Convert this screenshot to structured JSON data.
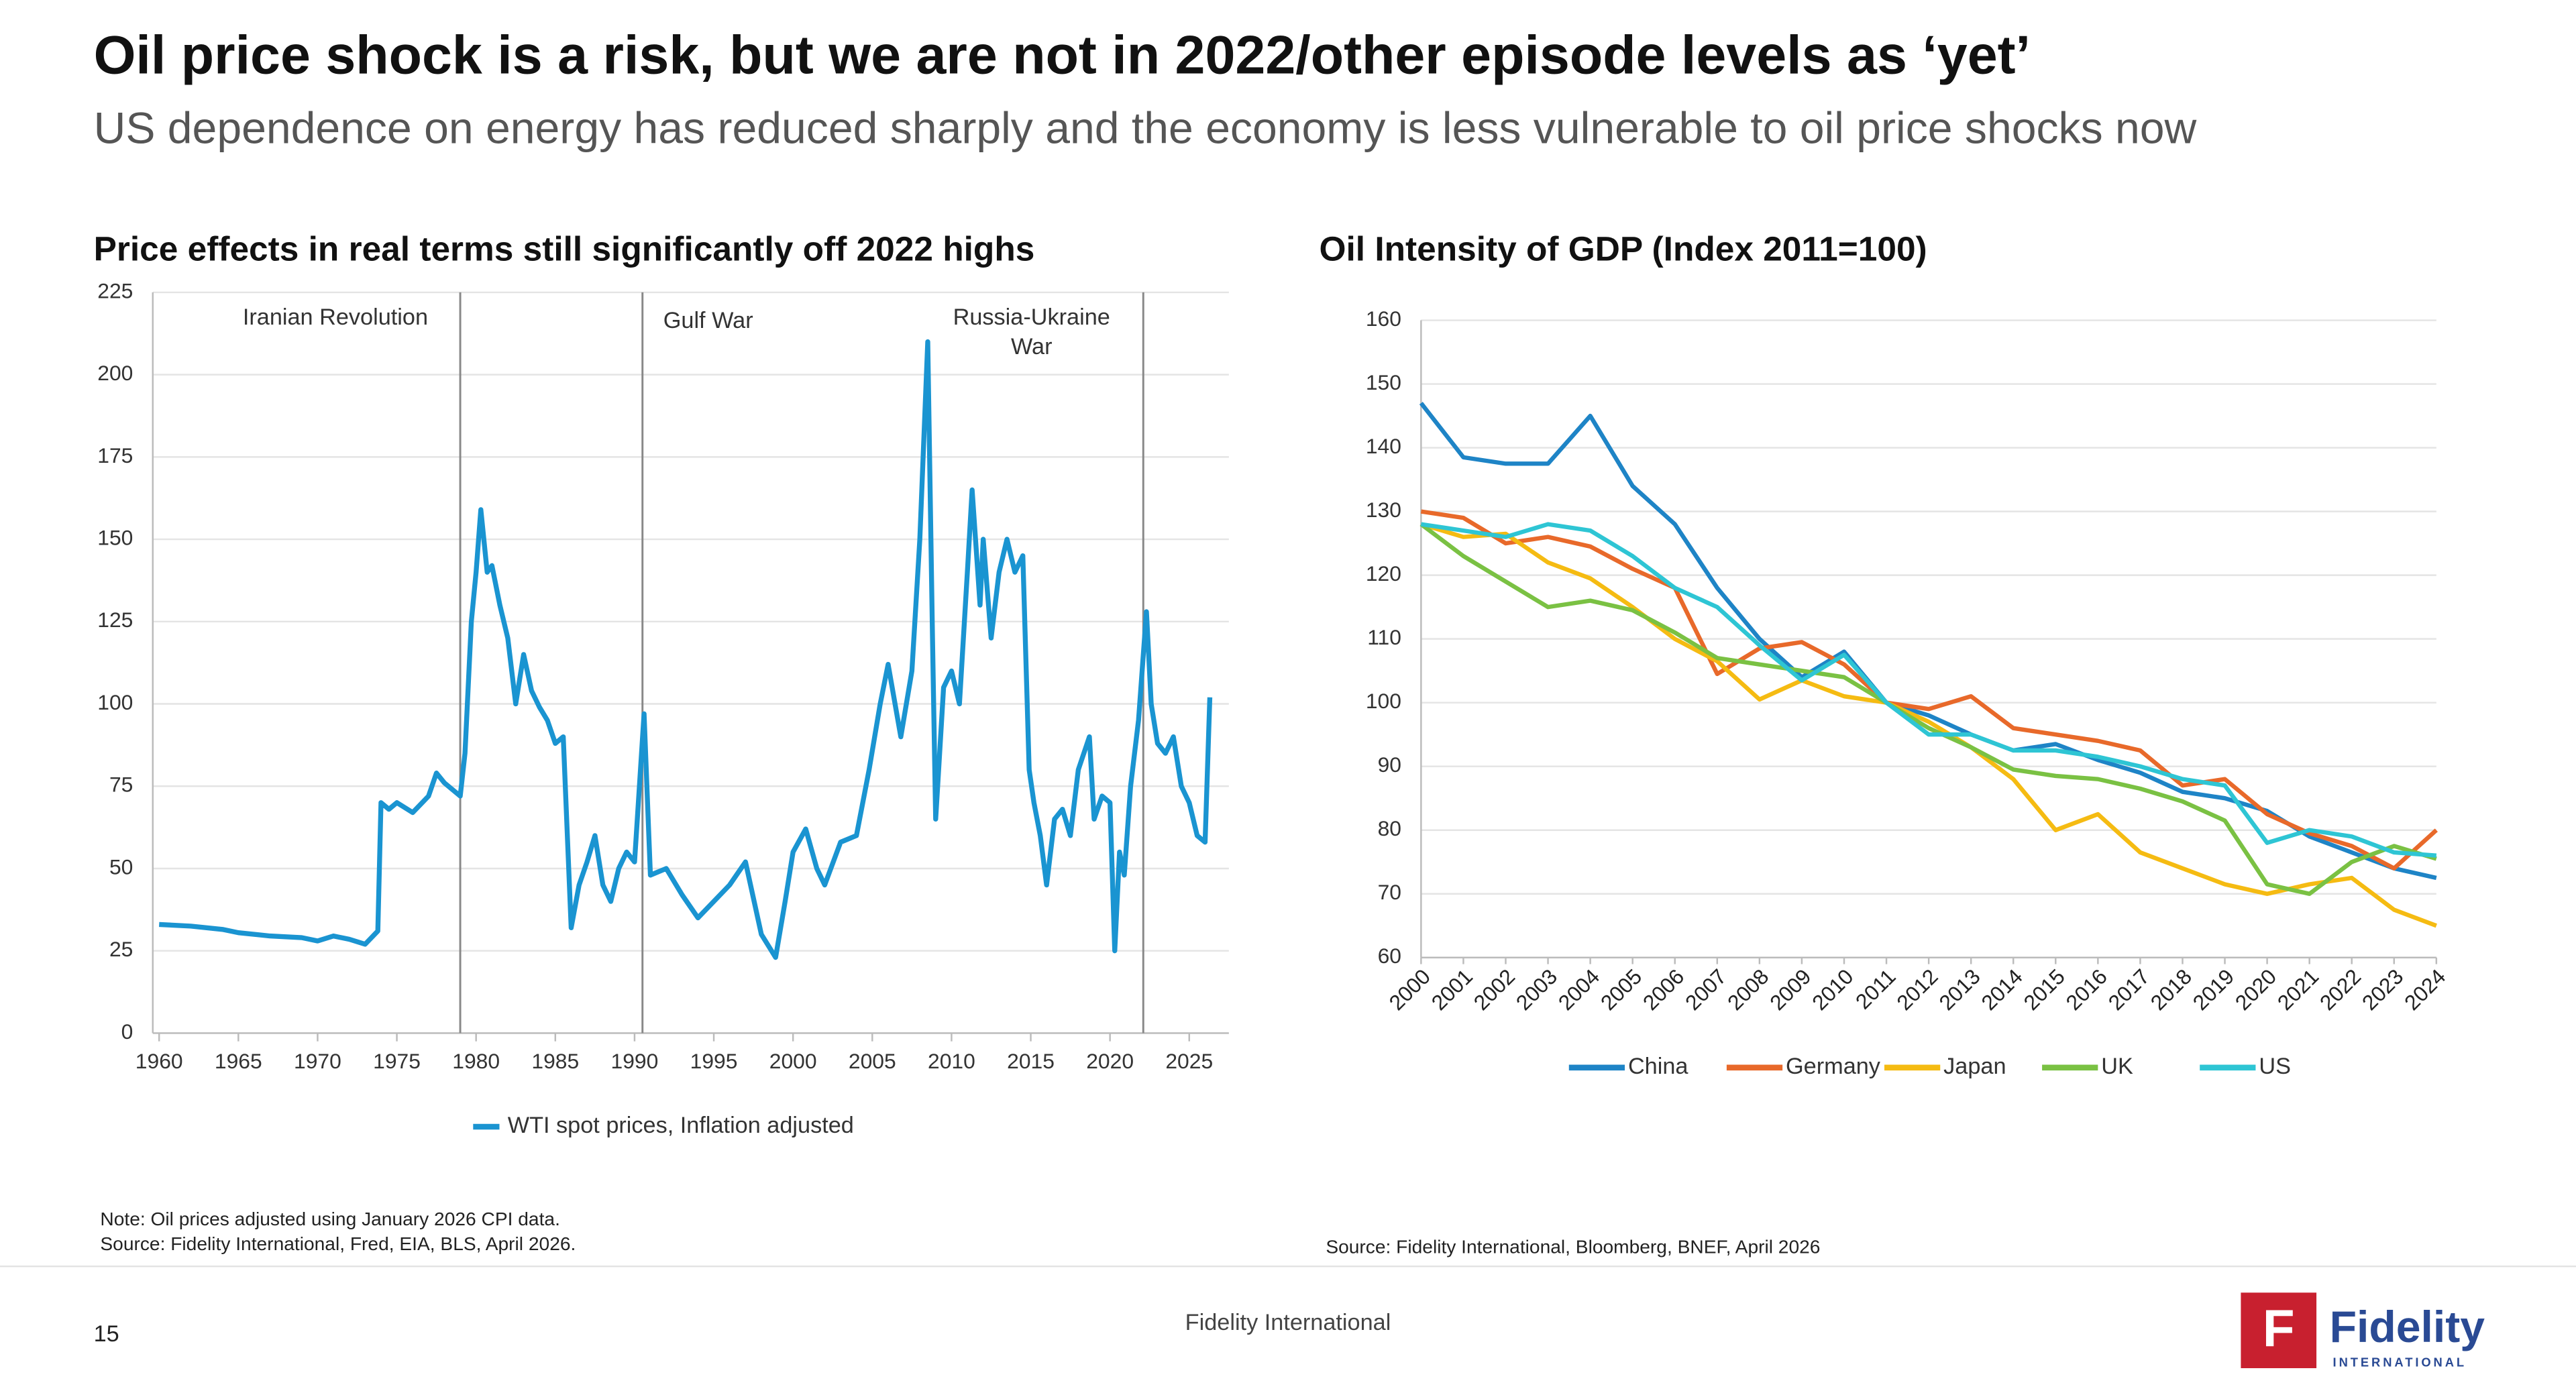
{
  "header": {
    "title": "Oil price shock is a risk, but we are not in 2022/other episode levels as ‘yet’",
    "subtitle": "US dependence on energy has reduced sharply and the economy is less vulnerable to oil price shocks now"
  },
  "footer": {
    "page": "15",
    "center": "Fidelity International",
    "logo_mark": "F",
    "logo_name": "Fidelity",
    "logo_sub": "INTERNATIONAL"
  },
  "chart_data": [
    {
      "type": "line",
      "title": "Price effects in real terms still significantly off 2022 highs",
      "notes": [
        "Note: Oil prices adjusted using January 2026 CPI data.",
        "Source: Fidelity International, Fred, EIA, BLS, April 2026."
      ],
      "x": [
        1960,
        1962,
        1964,
        1965,
        1967,
        1969,
        1970,
        1971,
        1972,
        1973,
        1973.8,
        1974,
        1974.5,
        1975,
        1976,
        1977,
        1977.5,
        1978,
        1979,
        1979.3,
        1979.7,
        1980,
        1980.3,
        1980.7,
        1981,
        1981.5,
        1982,
        1982.5,
        1983,
        1983.5,
        1984,
        1984.5,
        1985,
        1985.5,
        1986,
        1986.5,
        1987,
        1987.5,
        1988,
        1988.5,
        1989,
        1989.5,
        1990,
        1990.6,
        1990.9,
        1991,
        1992,
        1993,
        1994,
        1995,
        1996,
        1997,
        1998,
        1998.9,
        1999.5,
        2000,
        2000.8,
        2001.5,
        2002,
        2003,
        2004,
        2004.8,
        2005.5,
        2006,
        2006.8,
        2007.5,
        2008,
        2008.5,
        2008.8,
        2009,
        2009.5,
        2010,
        2010.5,
        2011,
        2011.3,
        2011.8,
        2012,
        2012.5,
        2013,
        2013.5,
        2014,
        2014.5,
        2014.9,
        2015.2,
        2015.6,
        2016,
        2016.5,
        2017,
        2017.5,
        2018,
        2018.7,
        2019,
        2019.5,
        2020,
        2020.3,
        2020.6,
        2020.9,
        2021.3,
        2021.8,
        2022.3,
        2022.6,
        2023,
        2023.5,
        2024,
        2024.5,
        2025,
        2025.5,
        2026,
        2026.3
      ],
      "series": [
        {
          "name": "WTI spot prices, Inflation adjusted",
          "color": "#1a94d1",
          "values": [
            33,
            32.5,
            31.5,
            30.5,
            29.5,
            29,
            28,
            29.5,
            28.5,
            27,
            31,
            70,
            68,
            70,
            67,
            72,
            79,
            76,
            72,
            85,
            125,
            140,
            159,
            140,
            142,
            130,
            120,
            100,
            115,
            104,
            99,
            95,
            88,
            90,
            32,
            45,
            52,
            60,
            45,
            40,
            50,
            55,
            52,
            97,
            60,
            48,
            50,
            42,
            35,
            40,
            45,
            52,
            30,
            23,
            40,
            55,
            62,
            50,
            45,
            58,
            60,
            80,
            100,
            112,
            90,
            110,
            150,
            210,
            120,
            65,
            105,
            110,
            100,
            140,
            165,
            130,
            150,
            120,
            140,
            150,
            140,
            145,
            80,
            70,
            60,
            45,
            65,
            68,
            60,
            80,
            90,
            65,
            72,
            70,
            25,
            55,
            48,
            75,
            95,
            128,
            100,
            88,
            85,
            90,
            75,
            70,
            60,
            58,
            102
          ]
        }
      ],
      "events": [
        {
          "x": 1979,
          "label": [
            "Iranian Revolution"
          ]
        },
        {
          "x": 1990.5,
          "label": [
            "Gulf War"
          ]
        },
        {
          "x": 2022.1,
          "label": [
            "Russia-Ukraine",
            "War"
          ]
        }
      ],
      "xlim": [
        1959.6,
        2027.5
      ],
      "xticks": [
        1960,
        1965,
        1970,
        1975,
        1980,
        1985,
        1990,
        1995,
        2000,
        2005,
        2010,
        2015,
        2020,
        2025
      ],
      "ylim": [
        0,
        225
      ],
      "yticks": [
        0,
        25,
        50,
        75,
        100,
        125,
        150,
        175,
        200,
        225
      ],
      "grid": true,
      "legend": "bottom"
    },
    {
      "type": "line",
      "title": "Oil Intensity of GDP (Index 2011=100)",
      "notes": [
        "Source: Fidelity International, Bloomberg, BNEF, April 2026"
      ],
      "categories": [
        "2000",
        "2001",
        "2002",
        "2003",
        "2004",
        "2005",
        "2006",
        "2007",
        "2008",
        "2009",
        "2010",
        "2011",
        "2012",
        "2013",
        "2014",
        "2015",
        "2016",
        "2017",
        "2018",
        "2019",
        "2020",
        "2021",
        "2022",
        "2023",
        "2024"
      ],
      "series": [
        {
          "name": "China",
          "color": "#1e84c6",
          "values": [
            147,
            138.5,
            137.5,
            137.5,
            145,
            134,
            128,
            118,
            110,
            104,
            108,
            100,
            98,
            95,
            92.5,
            93.5,
            91,
            89,
            86,
            85,
            83,
            79,
            76.5,
            74,
            72.5
          ]
        },
        {
          "name": "Germany",
          "color": "#e8692a",
          "values": [
            130,
            129,
            125,
            126,
            124.5,
            121,
            118,
            104.5,
            108.5,
            109.5,
            106,
            100,
            99,
            101,
            96,
            95,
            94,
            92.5,
            87,
            88,
            82.5,
            79.5,
            77.5,
            74,
            80
          ]
        },
        {
          "name": "Japan",
          "color": "#f5bb12",
          "values": [
            128,
            126,
            126.5,
            122,
            119.5,
            115,
            110,
            106.5,
            100.5,
            103.5,
            101,
            100,
            97,
            93,
            88,
            80,
            82.5,
            76.5,
            74,
            71.5,
            70,
            71.5,
            72.5,
            67.5,
            65
          ]
        },
        {
          "name": "UK",
          "color": "#7ac143",
          "values": [
            128,
            123,
            119,
            115,
            116,
            114.5,
            111,
            107,
            106,
            105,
            104,
            100,
            96,
            93,
            89.5,
            88.5,
            88,
            86.5,
            84.5,
            81.5,
            71.5,
            70,
            75,
            77.5,
            75.5
          ]
        },
        {
          "name": "US",
          "color": "#2ec5d4",
          "values": [
            128,
            127,
            126,
            128,
            127,
            123,
            118,
            115,
            109,
            103.5,
            107.5,
            100,
            95,
            95,
            92.5,
            92.5,
            91.5,
            90,
            88,
            87,
            78,
            80,
            79,
            76.5,
            76
          ]
        }
      ],
      "ylim": [
        60,
        160
      ],
      "yticks": [
        60,
        70,
        80,
        90,
        100,
        110,
        120,
        130,
        140,
        150,
        160
      ],
      "grid": true,
      "legend": "bottom"
    }
  ]
}
